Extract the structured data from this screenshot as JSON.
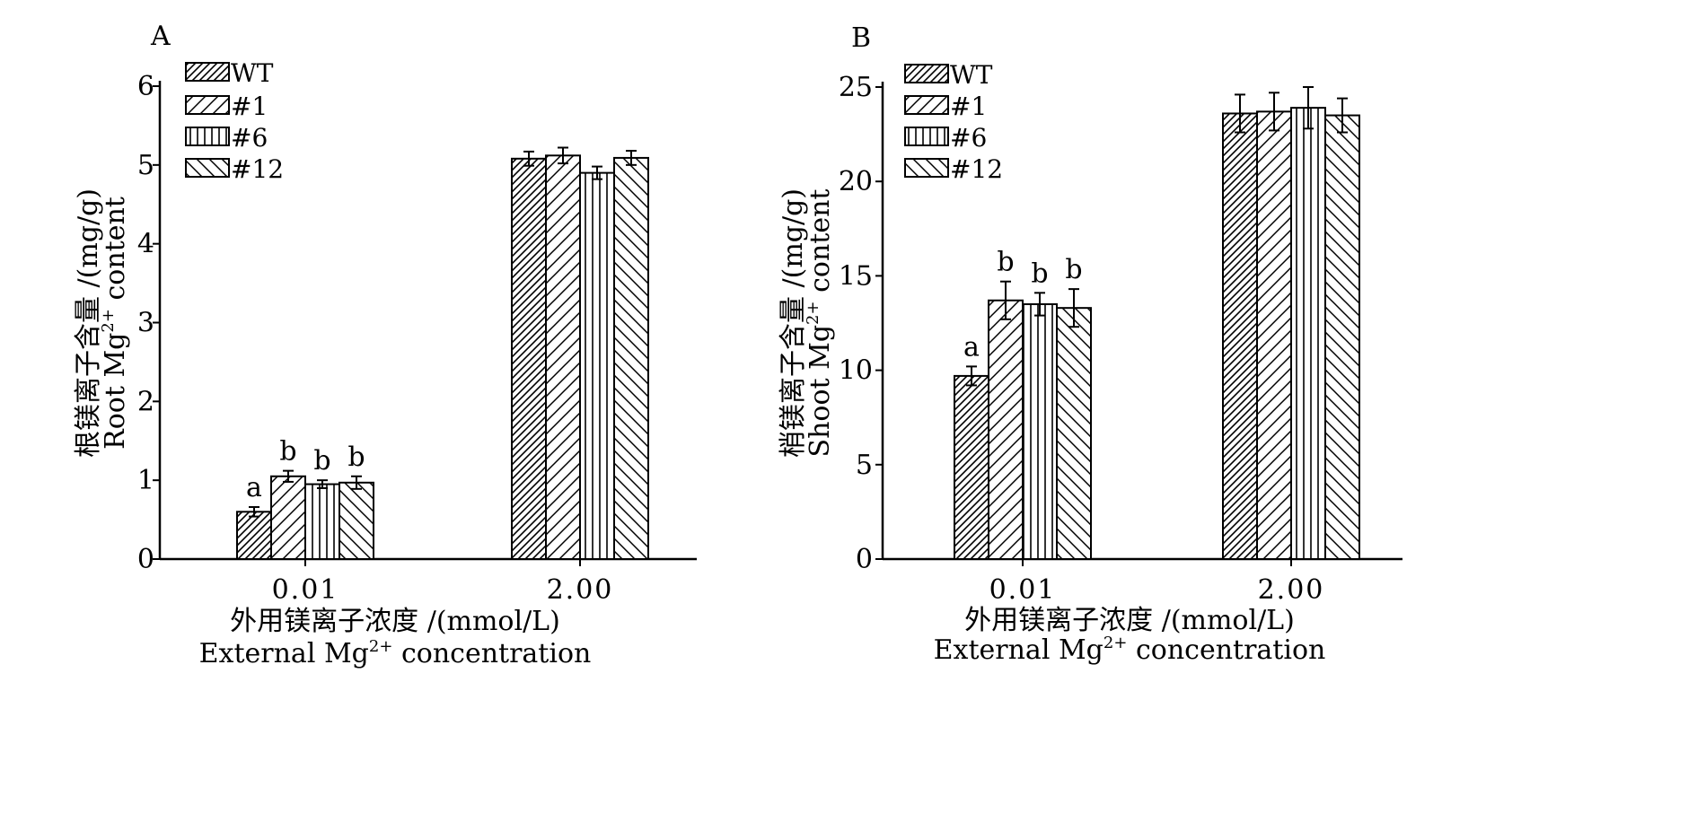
{
  "chart_data": [
    {
      "panel": "A",
      "type": "bar",
      "categories": [
        "0.01",
        "2.00"
      ],
      "series": [
        {
          "name": "WT",
          "values": [
            0.6,
            5.08
          ],
          "errors": [
            0.06,
            0.09
          ],
          "pattern": "hatch-fwd-dense"
        },
        {
          "name": "#1",
          "values": [
            1.05,
            5.12
          ],
          "errors": [
            0.07,
            0.1
          ],
          "pattern": "hatch-fwd"
        },
        {
          "name": "#6",
          "values": [
            0.95,
            4.9
          ],
          "errors": [
            0.05,
            0.08
          ],
          "pattern": "vertical"
        },
        {
          "name": "#12",
          "values": [
            0.97,
            5.09
          ],
          "errors": [
            0.08,
            0.09
          ],
          "pattern": "hatch-back"
        }
      ],
      "significance": [
        [
          "a",
          "b",
          "b",
          "b"
        ],
        [
          "",
          "",
          "",
          ""
        ]
      ],
      "ylim": [
        0,
        6
      ],
      "yticks": [
        0,
        1,
        2,
        3,
        4,
        5,
        6
      ],
      "ylabel_cn": "根镁离子含量 /(mg/g)",
      "ylabel_en_main": "Root Mg",
      "ylabel_en_sup": "2+",
      "ylabel_en_tail": " content",
      "xlabel_cn": "外用镁离子浓度 /(mmol/L)",
      "xlabel_en_main": "External Mg",
      "xlabel_en_sup": "2+",
      "xlabel_en_tail": " concentration",
      "legend_position": "top-left"
    },
    {
      "panel": "B",
      "type": "bar",
      "categories": [
        "0.01",
        "2.00"
      ],
      "series": [
        {
          "name": "WT",
          "values": [
            9.7,
            23.6
          ],
          "errors": [
            0.5,
            1.0
          ],
          "pattern": "hatch-fwd-dense"
        },
        {
          "name": "#1",
          "values": [
            13.7,
            23.7
          ],
          "errors": [
            1.0,
            1.0
          ],
          "pattern": "hatch-fwd"
        },
        {
          "name": "#6",
          "values": [
            13.5,
            23.9
          ],
          "errors": [
            0.6,
            1.1
          ],
          "pattern": "vertical"
        },
        {
          "name": "#12",
          "values": [
            13.3,
            23.5
          ],
          "errors": [
            1.0,
            0.9
          ],
          "pattern": "hatch-back"
        }
      ],
      "significance": [
        [
          "a",
          "b",
          "b",
          "b"
        ],
        [
          "",
          "",
          "",
          ""
        ]
      ],
      "ylim": [
        0,
        25
      ],
      "yticks": [
        0,
        5,
        10,
        15,
        20,
        25
      ],
      "ylabel_cn": "梢镁离子含量 /(mg/g)",
      "ylabel_en_main": "Shoot Mg",
      "ylabel_en_sup": "2+",
      "ylabel_en_tail": " content",
      "xlabel_cn": "外用镁离子浓度 /(mmol/L)",
      "xlabel_en_main": "External Mg",
      "xlabel_en_sup": "2+",
      "xlabel_en_tail": " concentration",
      "legend_position": "top-left"
    }
  ]
}
